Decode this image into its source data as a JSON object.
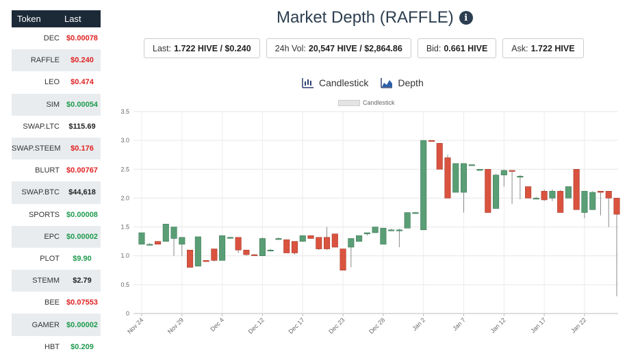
{
  "sidebar": {
    "col_token": "Token",
    "col_last": "Last",
    "rows": [
      {
        "symbol": "DEC",
        "last": "$0.00078",
        "color": "red"
      },
      {
        "symbol": "RAFFLE",
        "last": "$0.240",
        "color": "red"
      },
      {
        "symbol": "LEO",
        "last": "$0.474",
        "color": "red"
      },
      {
        "symbol": "SIM",
        "last": "$0.00054",
        "color": "green"
      },
      {
        "symbol": "SWAP.LTC",
        "last": "$115.69",
        "color": "black"
      },
      {
        "symbol": "SWAP.STEEM",
        "last": "$0.176",
        "color": "red"
      },
      {
        "symbol": "BLURT",
        "last": "$0.00767",
        "color": "red"
      },
      {
        "symbol": "SWAP.BTC",
        "last": "$44,618",
        "color": "black"
      },
      {
        "symbol": "SPORTS",
        "last": "$0.00008",
        "color": "green"
      },
      {
        "symbol": "EPC",
        "last": "$0.00002",
        "color": "green"
      },
      {
        "symbol": "PLOT",
        "last": "$9.90",
        "color": "green"
      },
      {
        "symbol": "STEMM",
        "last": "$2.79",
        "color": "black"
      },
      {
        "symbol": "BEE",
        "last": "$0.07553",
        "color": "red"
      },
      {
        "symbol": "GAMER",
        "last": "$0.00002",
        "color": "green"
      },
      {
        "symbol": "HBT",
        "last": "$0.209",
        "color": "green"
      }
    ]
  },
  "header": {
    "title": "Market Depth (RAFFLE)",
    "info_icon": "info-circle-icon"
  },
  "stats": {
    "last_label": "Last:",
    "last_value": "1.722 HIVE / $0.240",
    "vol_label": "24h Vol:",
    "vol_value": "20,547 HIVE / $2,864.86",
    "bid_label": "Bid:",
    "bid_value": "0.661 HIVE",
    "ask_label": "Ask:",
    "ask_value": "1.722 HIVE"
  },
  "chart_switch": {
    "candlestick_label": "Candlestick",
    "depth_label": "Depth",
    "candlestick_icon": "candlestick-chart-icon",
    "depth_icon": "area-chart-icon"
  },
  "colors": {
    "up": "#5a9e76",
    "down": "#d9533f",
    "red_text": "#e02020",
    "green_text": "#1e9b4e",
    "sidebar_header": "#1c2a38"
  },
  "chart_data": {
    "type": "candlestick",
    "legend": "Candlestick",
    "legend_position": "top-center",
    "grid": true,
    "ylim": [
      0,
      3.5
    ],
    "yticks": [
      "0",
      "0.5",
      "1.0",
      "1.5",
      "2.0",
      "2.5",
      "3.0",
      "3.5"
    ],
    "xticks": [
      "Nov 24",
      "Nov 29",
      "Dec 4",
      "Dec 12",
      "Dec 17",
      "Dec 23",
      "Dec 28",
      "Jan 2",
      "Jan 7",
      "Jan 12",
      "Jan 17",
      "Jan 22"
    ],
    "xtick_index": [
      0,
      5,
      10,
      15,
      20,
      25,
      30,
      35,
      40,
      45,
      50,
      55
    ],
    "candles": [
      {
        "o": 1.2,
        "h": 1.4,
        "l": 1.2,
        "c": 1.4
      },
      {
        "o": 1.2,
        "h": 1.22,
        "l": 1.18,
        "c": 1.2
      },
      {
        "o": 1.25,
        "h": 1.25,
        "l": 1.2,
        "c": 1.2
      },
      {
        "o": 1.25,
        "h": 1.55,
        "l": 1.25,
        "c": 1.55
      },
      {
        "o": 1.3,
        "h": 1.5,
        "l": 1.0,
        "c": 1.5
      },
      {
        "o": 1.2,
        "h": 1.32,
        "l": 1.0,
        "c": 1.32
      },
      {
        "o": 1.1,
        "h": 1.1,
        "l": 0.8,
        "c": 0.8
      },
      {
        "o": 0.82,
        "h": 1.33,
        "l": 0.82,
        "c": 1.33
      },
      {
        "o": 0.92,
        "h": 0.92,
        "l": 0.9,
        "c": 0.9
      },
      {
        "o": 1.12,
        "h": 1.12,
        "l": 0.9,
        "c": 0.92
      },
      {
        "o": 0.92,
        "h": 1.35,
        "l": 0.92,
        "c": 1.35
      },
      {
        "o": 1.32,
        "h": 1.33,
        "l": 1.3,
        "c": 1.32
      },
      {
        "o": 1.32,
        "h": 1.32,
        "l": 1.05,
        "c": 1.1
      },
      {
        "o": 1.1,
        "h": 1.1,
        "l": 1.0,
        "c": 1.02
      },
      {
        "o": 1.02,
        "h": 1.03,
        "l": 1.0,
        "c": 1.01
      },
      {
        "o": 1.0,
        "h": 1.32,
        "l": 1.0,
        "c": 1.3
      },
      {
        "o": 1.1,
        "h": 1.12,
        "l": 1.08,
        "c": 1.1
      },
      {
        "o": 1.3,
        "h": 1.32,
        "l": 1.28,
        "c": 1.3
      },
      {
        "o": 1.28,
        "h": 1.28,
        "l": 1.05,
        "c": 1.05
      },
      {
        "o": 1.25,
        "h": 1.25,
        "l": 1.02,
        "c": 1.05
      },
      {
        "o": 1.25,
        "h": 1.35,
        "l": 1.25,
        "c": 1.35
      },
      {
        "o": 1.35,
        "h": 1.35,
        "l": 1.3,
        "c": 1.3
      },
      {
        "o": 1.32,
        "h": 1.32,
        "l": 1.1,
        "c": 1.12
      },
      {
        "o": 1.32,
        "h": 1.5,
        "l": 1.1,
        "c": 1.12
      },
      {
        "o": 1.38,
        "h": 1.38,
        "l": 1.15,
        "c": 1.15
      },
      {
        "o": 1.12,
        "h": 1.12,
        "l": 0.75,
        "c": 0.75
      },
      {
        "o": 1.15,
        "h": 1.3,
        "l": 0.8,
        "c": 1.3
      },
      {
        "o": 1.25,
        "h": 1.35,
        "l": 1.25,
        "c": 1.35
      },
      {
        "o": 1.38,
        "h": 1.4,
        "l": 1.35,
        "c": 1.4
      },
      {
        "o": 1.4,
        "h": 1.5,
        "l": 1.4,
        "c": 1.5
      },
      {
        "o": 1.2,
        "h": 1.48,
        "l": 1.2,
        "c": 1.48
      },
      {
        "o": 1.45,
        "h": 1.47,
        "l": 1.43,
        "c": 1.45
      },
      {
        "o": 1.45,
        "h": 1.47,
        "l": 1.15,
        "c": 1.45
      },
      {
        "o": 1.48,
        "h": 1.75,
        "l": 1.48,
        "c": 1.75
      },
      {
        "o": 1.75,
        "h": 1.76,
        "l": 1.74,
        "c": 1.75
      },
      {
        "o": 1.45,
        "h": 3.0,
        "l": 1.45,
        "c": 3.0
      },
      {
        "o": 3.0,
        "h": 3.0,
        "l": 2.98,
        "c": 2.99
      },
      {
        "o": 2.95,
        "h": 2.95,
        "l": 2.5,
        "c": 2.5
      },
      {
        "o": 2.7,
        "h": 2.75,
        "l": 2.0,
        "c": 2.0
      },
      {
        "o": 2.1,
        "h": 2.6,
        "l": 2.1,
        "c": 2.6
      },
      {
        "o": 2.1,
        "h": 2.6,
        "l": 1.75,
        "c": 2.6
      },
      {
        "o": 2.58,
        "h": 2.58,
        "l": 2.57,
        "c": 2.58
      },
      {
        "o": 2.48,
        "h": 2.5,
        "l": 2.48,
        "c": 2.5
      },
      {
        "o": 2.5,
        "h": 2.5,
        "l": 1.75,
        "c": 1.75
      },
      {
        "o": 1.82,
        "h": 2.42,
        "l": 1.82,
        "c": 2.4
      },
      {
        "o": 2.4,
        "h": 2.5,
        "l": 2.2,
        "c": 2.48
      },
      {
        "o": 2.48,
        "h": 2.48,
        "l": 1.9,
        "c": 2.47
      },
      {
        "o": 2.38,
        "h": 2.4,
        "l": 1.98,
        "c": 2.38
      },
      {
        "o": 2.2,
        "h": 2.2,
        "l": 2.0,
        "c": 2.0
      },
      {
        "o": 2.0,
        "h": 2.02,
        "l": 1.98,
        "c": 2.0
      },
      {
        "o": 2.12,
        "h": 2.15,
        "l": 1.95,
        "c": 1.97
      },
      {
        "o": 2.0,
        "h": 2.15,
        "l": 1.95,
        "c": 2.12
      },
      {
        "o": 2.12,
        "h": 2.14,
        "l": 1.75,
        "c": 1.75
      },
      {
        "o": 2.0,
        "h": 2.2,
        "l": 2.0,
        "c": 2.2
      },
      {
        "o": 2.5,
        "h": 2.5,
        "l": 1.8,
        "c": 1.8
      },
      {
        "o": 1.75,
        "h": 2.12,
        "l": 1.65,
        "c": 2.12
      },
      {
        "o": 1.8,
        "h": 2.12,
        "l": 1.8,
        "c": 2.1
      },
      {
        "o": 2.12,
        "h": 2.12,
        "l": 1.7,
        "c": 2.1
      },
      {
        "o": 2.12,
        "h": 2.12,
        "l": 1.5,
        "c": 2.0
      },
      {
        "o": 2.0,
        "h": 2.0,
        "l": 0.3,
        "c": 1.72
      }
    ]
  }
}
